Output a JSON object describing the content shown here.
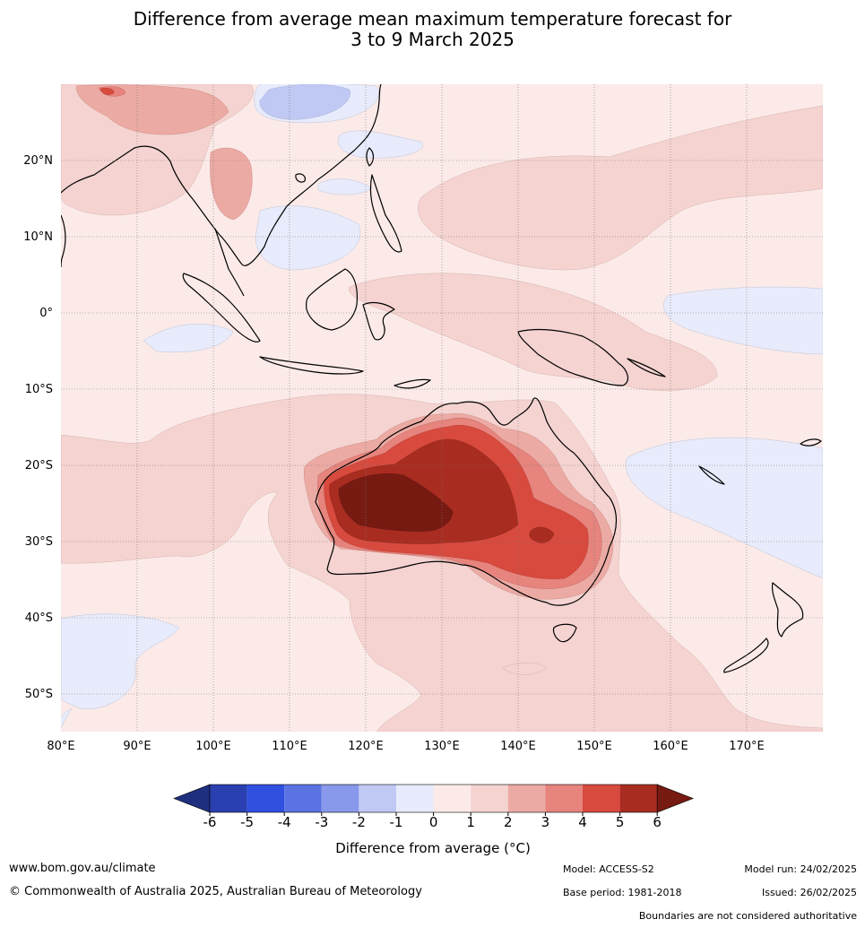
{
  "title": {
    "line1": "Difference from average mean maximum temperature forecast for",
    "line2": "3 to 9 March 2025"
  },
  "map": {
    "lon_labels": [
      "80°E",
      "90°E",
      "100°E",
      "110°E",
      "120°E",
      "130°E",
      "140°E",
      "150°E",
      "160°E",
      "170°E"
    ],
    "lat_labels": [
      "20°N",
      "10°N",
      "0°",
      "10°S",
      "20°S",
      "30°S",
      "40°S",
      "50°S"
    ]
  },
  "colorbar": {
    "ticks": [
      "-6",
      "-5",
      "-4",
      "-3",
      "-2",
      "-1",
      "0",
      "1",
      "2",
      "3",
      "4",
      "5",
      "6"
    ],
    "colors": [
      "#1f2f80",
      "#2a40b0",
      "#3050e0",
      "#5a72e2",
      "#8898ea",
      "#c0c9f4",
      "#e7ebfb",
      "#fbeae8",
      "#f4d3d0",
      "#ecaaa4",
      "#e6847d",
      "#d84a3e",
      "#a92c20",
      "#771a12"
    ],
    "label": "Difference from average (°C)"
  },
  "footer": {
    "website": "www.bom.gov.au/climate",
    "copyright": "© Commonwealth of Australia 2025, Australian Bureau of Meteorology",
    "model": "Model: ACCESS-S2",
    "base_period": "Base period: 1981-2018",
    "model_run": "Model run: 24/02/2025",
    "issued": "Issued: 26/02/2025",
    "disclaimer": "Boundaries are not considered authoritative"
  }
}
